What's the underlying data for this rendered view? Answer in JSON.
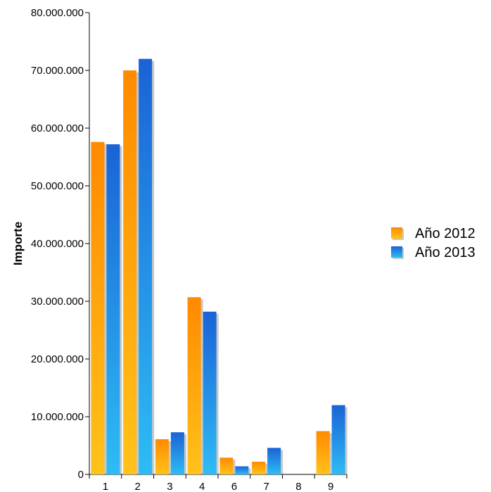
{
  "chart_data": {
    "type": "bar",
    "title": "",
    "xlabel": "",
    "ylabel": "Importe",
    "categories": [
      "1",
      "2",
      "3",
      "4",
      "6",
      "7",
      "8",
      "9"
    ],
    "series": [
      {
        "name": "Año 2012",
        "values": [
          57600000,
          70000000,
          6100000,
          30700000,
          2900000,
          2200000,
          0,
          7500000
        ]
      },
      {
        "name": "Año 2013",
        "values": [
          57200000,
          72000000,
          7300000,
          28200000,
          1400000,
          4600000,
          0,
          12000000
        ]
      }
    ],
    "ylim": [
      0,
      80000000
    ],
    "yticks": [
      0,
      10000000,
      20000000,
      30000000,
      40000000,
      50000000,
      60000000,
      70000000,
      80000000
    ],
    "ytick_labels": [
      "0",
      "10.000.000",
      "20.000.000",
      "30.000.000",
      "40.000.000",
      "50.000.000",
      "60.000.000",
      "70.000.000",
      "80.000.000"
    ],
    "grid": false,
    "legend_position": "right"
  },
  "colors": {
    "series_2012_top": "#ff8a00",
    "series_2012_bottom": "#ffc21a",
    "series_2013_top": "#1a63d6",
    "series_2013_bottom": "#2ebcf5",
    "axis": "#000000"
  }
}
